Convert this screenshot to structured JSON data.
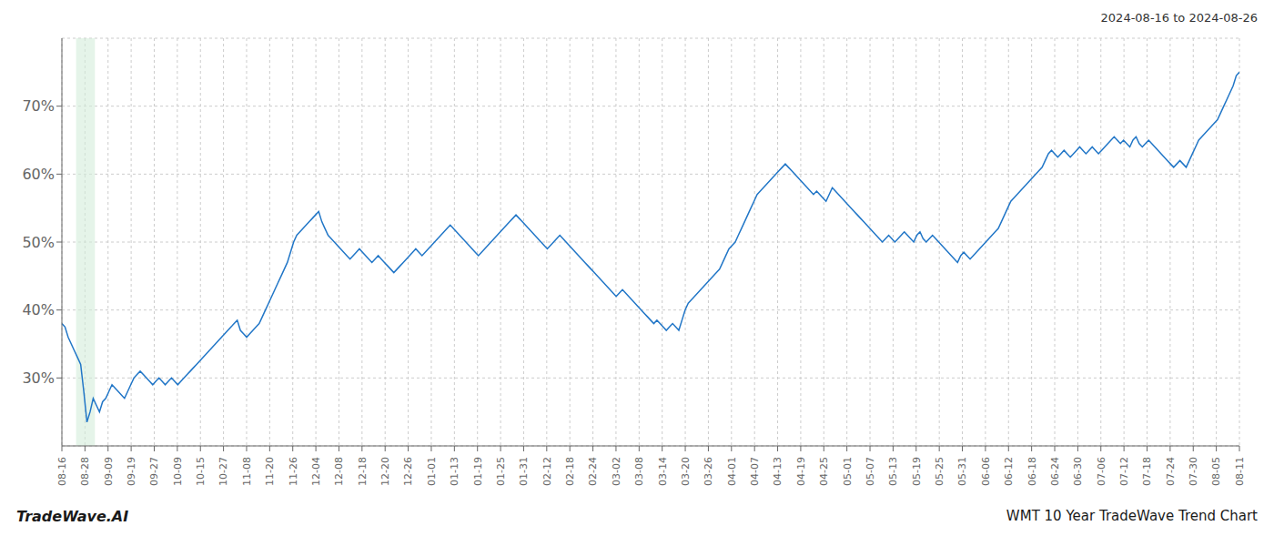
{
  "chart_data": {
    "type": "line",
    "title": "2024-08-16 to 2024-08-26",
    "annotations": [
      "TradeWave.AI",
      "WMT 10 Year TradeWave Trend Chart"
    ],
    "color": "#2176c7",
    "grid": true,
    "shade": {
      "x": [
        4.524,
        10.556
      ],
      "color": "#d4edda"
    },
    "xlim": [
      0,
      376
    ],
    "xticks": [
      {
        "value": 0,
        "label": "08-16"
      },
      {
        "value": 7.372549,
        "label": "08-28"
      },
      {
        "value": 14.745098,
        "label": "09-09"
      },
      {
        "value": 22.117647,
        "label": "09-19"
      },
      {
        "value": 29.490196,
        "label": "09-27"
      },
      {
        "value": 36.862745,
        "label": "10-09"
      },
      {
        "value": 44.235294,
        "label": "10-15"
      },
      {
        "value": 51.607843,
        "label": "10-27"
      },
      {
        "value": 58.980392,
        "label": "11-08"
      },
      {
        "value": 66.352941,
        "label": "11-20"
      },
      {
        "value": 73.72549,
        "label": "11-26"
      },
      {
        "value": 81.098039,
        "label": "12-04"
      },
      {
        "value": 88.470588,
        "label": "12-08"
      },
      {
        "value": 95.843137,
        "label": "12-18"
      },
      {
        "value": 103.215686,
        "label": "12-20"
      },
      {
        "value": 110.588235,
        "label": "12-26"
      },
      {
        "value": 117.960784,
        "label": "01-01"
      },
      {
        "value": 125.333333,
        "label": "01-13"
      },
      {
        "value": 132.705882,
        "label": "01-19"
      },
      {
        "value": 140.078431,
        "label": "01-25"
      },
      {
        "value": 147.45098,
        "label": "01-31"
      },
      {
        "value": 154.823529,
        "label": "02-12"
      },
      {
        "value": 162.196078,
        "label": "02-18"
      },
      {
        "value": 169.568627,
        "label": "02-24"
      },
      {
        "value": 176.941176,
        "label": "03-02"
      },
      {
        "value": 184.313725,
        "label": "03-08"
      },
      {
        "value": 191.686275,
        "label": "03-14"
      },
      {
        "value": 199.058824,
        "label": "03-20"
      },
      {
        "value": 206.431373,
        "label": "03-26"
      },
      {
        "value": 213.803922,
        "label": "04-01"
      },
      {
        "value": 221.176471,
        "label": "04-07"
      },
      {
        "value": 228.54902,
        "label": "04-13"
      },
      {
        "value": 235.921569,
        "label": "04-19"
      },
      {
        "value": 243.294118,
        "label": "04-25"
      },
      {
        "value": 250.666667,
        "label": "05-01"
      },
      {
        "value": 258.039216,
        "label": "05-07"
      },
      {
        "value": 265.411765,
        "label": "05-13"
      },
      {
        "value": 272.784314,
        "label": "05-19"
      },
      {
        "value": 280.156863,
        "label": "05-25"
      },
      {
        "value": 287.529412,
        "label": "05-31"
      },
      {
        "value": 294.901961,
        "label": "06-06"
      },
      {
        "value": 302.27451,
        "label": "06-12"
      },
      {
        "value": 309.647059,
        "label": "06-18"
      },
      {
        "value": 317.019608,
        "label": "06-24"
      },
      {
        "value": 324.392157,
        "label": "06-30"
      },
      {
        "value": 331.764706,
        "label": "07-06"
      },
      {
        "value": 339.137255,
        "label": "07-12"
      },
      {
        "value": 346.509804,
        "label": "07-18"
      },
      {
        "value": 353.882353,
        "label": "07-24"
      },
      {
        "value": 361.254902,
        "label": "07-30"
      },
      {
        "value": 368.627451,
        "label": "08-05"
      },
      {
        "value": 376,
        "label": "08-11"
      }
    ],
    "ylim": [
      20,
      80
    ],
    "yticks": [
      {
        "value": 30,
        "label": "30%"
      },
      {
        "value": 40,
        "label": "40%"
      },
      {
        "value": 50,
        "label": "50%"
      },
      {
        "value": 60,
        "label": "60%"
      },
      {
        "value": 70,
        "label": "70%"
      }
    ],
    "x": [
      0,
      1,
      2,
      3,
      4,
      5,
      6,
      7,
      8,
      9,
      10,
      11,
      12,
      13,
      14,
      15,
      16,
      17,
      18,
      19,
      20,
      21,
      22,
      23,
      24,
      25,
      26,
      27,
      28,
      29,
      30,
      31,
      32,
      33,
      34,
      35,
      36,
      37,
      38,
      39,
      40,
      41,
      42,
      43,
      44,
      45,
      46,
      47,
      48,
      49,
      50,
      51,
      52,
      53,
      54,
      55,
      56,
      57,
      58,
      59,
      60,
      61,
      62,
      63,
      64,
      65,
      66,
      67,
      68,
      69,
      70,
      71,
      72,
      73,
      74,
      75,
      76,
      77,
      78,
      79,
      80,
      81,
      82,
      83,
      84,
      85,
      86,
      87,
      88,
      89,
      90,
      91,
      92,
      93,
      94,
      95,
      96,
      97,
      98,
      99,
      100,
      101,
      102,
      103,
      104,
      105,
      106,
      107,
      108,
      109,
      110,
      111,
      112,
      113,
      114,
      115,
      116,
      117,
      118,
      119,
      120,
      121,
      122,
      123,
      124,
      125,
      126,
      127,
      128,
      129,
      130,
      131,
      132,
      133,
      134,
      135,
      136,
      137,
      138,
      139,
      140,
      141,
      142,
      143,
      144,
      145,
      146,
      147,
      148,
      149,
      150,
      151,
      152,
      153,
      154,
      155,
      156,
      157,
      158,
      159,
      160,
      161,
      162,
      163,
      164,
      165,
      166,
      167,
      168,
      169,
      170,
      171,
      172,
      173,
      174,
      175,
      176,
      177,
      178,
      179,
      180,
      181,
      182,
      183,
      184,
      185,
      186,
      187,
      188,
      189,
      190,
      191,
      192,
      193,
      194,
      195,
      196,
      197,
      198,
      199,
      200,
      201,
      202,
      203,
      204,
      205,
      206,
      207,
      208,
      209,
      210,
      211,
      212,
      213,
      214,
      215,
      216,
      217,
      218,
      219,
      220,
      221,
      222,
      223,
      224,
      225,
      226,
      227,
      228,
      229,
      230,
      231,
      232,
      233,
      234,
      235,
      236,
      237,
      238,
      239,
      240,
      241,
      242,
      243,
      244,
      245,
      246,
      247,
      248,
      249,
      250,
      251,
      252,
      253,
      254,
      255,
      256,
      257,
      258,
      259,
      260,
      261,
      262,
      263,
      264,
      265,
      266,
      267,
      268,
      269,
      270,
      271,
      272,
      273,
      274,
      275,
      276,
      277,
      278,
      279,
      280,
      281,
      282,
      283,
      284,
      285,
      286,
      287,
      288,
      289,
      290,
      291,
      292,
      293,
      294,
      295,
      296,
      297,
      298,
      299,
      300,
      301,
      302,
      303,
      304,
      305,
      306,
      307,
      308,
      309,
      310,
      311,
      312,
      313,
      314,
      315,
      316,
      317,
      318,
      319,
      320,
      321,
      322,
      323,
      324,
      325,
      326,
      327,
      328,
      329,
      330,
      331,
      332,
      333,
      334,
      335,
      336,
      337,
      338,
      339,
      340,
      341,
      342,
      343,
      344,
      345,
      346,
      347,
      348,
      349,
      350,
      351,
      352,
      353,
      354,
      355,
      356,
      357,
      358,
      359,
      360,
      361,
      362,
      363,
      364,
      365,
      366,
      367,
      368,
      369,
      370,
      371,
      372,
      373,
      374,
      375,
      376
    ],
    "values": [
      38.0,
      37.5,
      36.0,
      35.0,
      34.0,
      33.0,
      32.0,
      28.0,
      23.5,
      25.0,
      27.0,
      26.0,
      25.0,
      26.5,
      27.0,
      28.0,
      29.0,
      28.5,
      28.0,
      27.5,
      27.0,
      28.0,
      29.0,
      30.0,
      30.5,
      31.0,
      30.5,
      30.0,
      29.5,
      29.0,
      29.5,
      30.0,
      29.5,
      29.0,
      29.5,
      30.0,
      29.5,
      29.0,
      29.5,
      30.0,
      30.5,
      31.0,
      31.5,
      32.0,
      32.5,
      33.0,
      33.5,
      34.0,
      34.5,
      35.0,
      35.5,
      36.0,
      36.5,
      37.0,
      37.5,
      38.0,
      38.5,
      37.0,
      36.5,
      36.0,
      36.5,
      37.0,
      37.5,
      38.0,
      39.0,
      40.0,
      41.0,
      42.0,
      43.0,
      44.0,
      45.0,
      46.0,
      47.0,
      48.5,
      50.0,
      51.0,
      51.5,
      52.0,
      52.5,
      53.0,
      53.5,
      54.0,
      54.5,
      53.0,
      52.0,
      51.0,
      50.5,
      50.0,
      49.5,
      49.0,
      48.5,
      48.0,
      47.5,
      48.0,
      48.5,
      49.0,
      48.5,
      48.0,
      47.5,
      47.0,
      47.5,
      48.0,
      47.5,
      47.0,
      46.5,
      46.0,
      45.5,
      46.0,
      46.5,
      47.0,
      47.5,
      48.0,
      48.5,
      49.0,
      48.5,
      48.0,
      48.5,
      49.0,
      49.5,
      50.0,
      50.5,
      51.0,
      51.5,
      52.0,
      52.5,
      52.0,
      51.5,
      51.0,
      50.5,
      50.0,
      49.5,
      49.0,
      48.5,
      48.0,
      48.5,
      49.0,
      49.5,
      50.0,
      50.5,
      51.0,
      51.5,
      52.0,
      52.5,
      53.0,
      53.5,
      54.0,
      53.5,
      53.0,
      52.5,
      52.0,
      51.5,
      51.0,
      50.5,
      50.0,
      49.5,
      49.0,
      49.5,
      50.0,
      50.5,
      51.0,
      50.5,
      50.0,
      49.5,
      49.0,
      48.5,
      48.0,
      47.5,
      47.0,
      46.5,
      46.0,
      45.5,
      45.0,
      44.5,
      44.0,
      43.5,
      43.0,
      42.5,
      42.0,
      42.5,
      43.0,
      42.5,
      42.0,
      41.5,
      41.0,
      40.5,
      40.0,
      39.5,
      39.0,
      38.5,
      38.0,
      38.5,
      38.0,
      37.5,
      37.0,
      37.5,
      38.0,
      37.5,
      37.0,
      38.5,
      40.0,
      41.0,
      41.5,
      42.0,
      42.5,
      43.0,
      43.5,
      44.0,
      44.5,
      45.0,
      45.5,
      46.0,
      47.0,
      48.0,
      49.0,
      49.5,
      50.0,
      51.0,
      52.0,
      53.0,
      54.0,
      55.0,
      56.0,
      57.0,
      57.5,
      58.0,
      58.5,
      59.0,
      59.5,
      60.0,
      60.5,
      61.0,
      61.5,
      61.0,
      60.5,
      60.0,
      59.5,
      59.0,
      58.5,
      58.0,
      57.5,
      57.0,
      57.5,
      57.0,
      56.5,
      56.0,
      57.0,
      58.0,
      57.5,
      57.0,
      56.5,
      56.0,
      55.5,
      55.0,
      54.5,
      54.0,
      53.5,
      53.0,
      52.5,
      52.0,
      51.5,
      51.0,
      50.5,
      50.0,
      50.5,
      51.0,
      50.5,
      50.0,
      50.5,
      51.0,
      51.5,
      51.0,
      50.5,
      50.0,
      51.0,
      51.5,
      50.5,
      50.0,
      50.5,
      51.0,
      50.5,
      50.0,
      49.5,
      49.0,
      48.5,
      48.0,
      47.5,
      47.0,
      48.0,
      48.5,
      48.0,
      47.5,
      48.0,
      48.5,
      49.0,
      49.5,
      50.0,
      50.5,
      51.0,
      51.5,
      52.0,
      53.0,
      54.0,
      55.0,
      56.0,
      56.5,
      57.0,
      57.5,
      58.0,
      58.5,
      59.0,
      59.5,
      60.0,
      60.5,
      61.0,
      62.0,
      63.0,
      63.5,
      63.0,
      62.5,
      63.0,
      63.5,
      63.0,
      62.5,
      63.0,
      63.5,
      64.0,
      63.5,
      63.0,
      63.5,
      64.0,
      63.5,
      63.0,
      63.5,
      64.0,
      64.5,
      65.0,
      65.5,
      65.0,
      64.5,
      65.0,
      64.5,
      64.0,
      65.0,
      65.5,
      64.5,
      64.0,
      64.5,
      65.0,
      64.5,
      64.0,
      63.5,
      63.0,
      62.5,
      62.0,
      61.5,
      61.0,
      61.5,
      62.0,
      61.5,
      61.0,
      62.0,
      63.0,
      64.0,
      65.0,
      65.5,
      66.0,
      66.5,
      67.0,
      67.5,
      68.0,
      69.0,
      70.0,
      71.0,
      72.0,
      73.0,
      74.5,
      75.0
    ]
  }
}
